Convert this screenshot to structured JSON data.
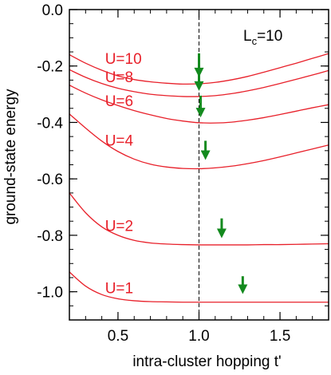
{
  "chart_data": {
    "type": "line",
    "title": "",
    "xlabel": "intra-cluster hopping  t'",
    "ylabel": "ground-state energy",
    "annotation": {
      "main": "L",
      "sub": "c",
      "rest": "=10"
    },
    "xlim": [
      0.2,
      1.8
    ],
    "ylim": [
      -1.1,
      0.0
    ],
    "xticks": [
      0.5,
      1.0,
      1.5
    ],
    "xtick_labels": [
      "0.5",
      "1.0",
      "1.5"
    ],
    "yticks": [
      0.0,
      -0.2,
      -0.4,
      -0.6,
      -0.8,
      -1.0
    ],
    "ytick_labels": [
      "0.0",
      "-0.2",
      "-0.4",
      "-0.6",
      "-0.8",
      "-1.0"
    ],
    "x_minor_step": 0.1,
    "y_minor_step": 0.05,
    "reference_line_x": 1.0,
    "colors": {
      "curve": "#e8202a",
      "arrow": "#138a1e",
      "axis": "#000000"
    },
    "series": [
      {
        "name": "U=10",
        "x": [
          0.2,
          0.3,
          0.4,
          0.5,
          0.6,
          0.7,
          0.8,
          0.9,
          1.0,
          1.1,
          1.2,
          1.3,
          1.4,
          1.5,
          1.6,
          1.7,
          1.8
        ],
        "y": [
          -0.16,
          -0.19,
          -0.215,
          -0.235,
          -0.248,
          -0.256,
          -0.261,
          -0.264,
          -0.263,
          -0.258,
          -0.249,
          -0.237,
          -0.222,
          -0.206,
          -0.19,
          -0.173,
          -0.156
        ]
      },
      {
        "name": "U=8",
        "x": [
          0.2,
          0.3,
          0.4,
          0.5,
          0.6,
          0.7,
          0.8,
          0.9,
          1.0,
          1.1,
          1.2,
          1.3,
          1.4,
          1.5,
          1.6,
          1.7,
          1.8
        ],
        "y": [
          -0.213,
          -0.24,
          -0.262,
          -0.279,
          -0.291,
          -0.3,
          -0.305,
          -0.308,
          -0.308,
          -0.305,
          -0.298,
          -0.288,
          -0.276,
          -0.262,
          -0.247,
          -0.232,
          -0.216
        ]
      },
      {
        "name": "U=6",
        "x": [
          0.2,
          0.3,
          0.4,
          0.5,
          0.6,
          0.7,
          0.8,
          0.9,
          1.0,
          1.1,
          1.2,
          1.3,
          1.4,
          1.5,
          1.6,
          1.7,
          1.8
        ],
        "y": [
          -0.268,
          -0.296,
          -0.32,
          -0.34,
          -0.358,
          -0.373,
          -0.386,
          -0.395,
          -0.401,
          -0.402,
          -0.399,
          -0.392,
          -0.383,
          -0.372,
          -0.36,
          -0.348,
          -0.337
        ]
      },
      {
        "name": "U=4",
        "x": [
          0.2,
          0.3,
          0.4,
          0.5,
          0.6,
          0.7,
          0.8,
          0.9,
          1.0,
          1.1,
          1.2,
          1.3,
          1.4,
          1.5,
          1.6,
          1.7,
          1.8
        ],
        "y": [
          -0.37,
          -0.42,
          -0.466,
          -0.503,
          -0.53,
          -0.548,
          -0.558,
          -0.563,
          -0.564,
          -0.561,
          -0.555,
          -0.546,
          -0.535,
          -0.522,
          -0.508,
          -0.494,
          -0.48
        ]
      },
      {
        "name": "U=2",
        "x": [
          0.2,
          0.3,
          0.4,
          0.5,
          0.6,
          0.7,
          0.8,
          0.9,
          1.0,
          1.1,
          1.2,
          1.3,
          1.4,
          1.5,
          1.6,
          1.7,
          1.8
        ],
        "y": [
          -0.65,
          -0.72,
          -0.77,
          -0.8,
          -0.818,
          -0.827,
          -0.831,
          -0.833,
          -0.834,
          -0.834,
          -0.834,
          -0.834,
          -0.833,
          -0.833,
          -0.832,
          -0.831,
          -0.83
        ]
      },
      {
        "name": "U=1",
        "x": [
          0.2,
          0.3,
          0.4,
          0.5,
          0.6,
          0.7,
          0.8,
          0.9,
          1.0,
          1.1,
          1.2,
          1.3,
          1.4,
          1.5,
          1.6,
          1.7,
          1.8
        ],
        "y": [
          -0.93,
          -0.98,
          -1.01,
          -1.025,
          -1.032,
          -1.035,
          -1.036,
          -1.037,
          -1.037,
          -1.037,
          -1.037,
          -1.037,
          -1.037,
          -1.037,
          -1.037,
          -1.037,
          -1.037
        ]
      }
    ],
    "labels": [
      {
        "text": "U=10",
        "x": 0.42,
        "y": -0.192
      },
      {
        "text": "U=8",
        "x": 0.42,
        "y": -0.258
      },
      {
        "text": "U=6",
        "x": 0.42,
        "y": -0.342
      },
      {
        "text": "U=4",
        "x": 0.42,
        "y": -0.482
      },
      {
        "text": "U=2",
        "x": 0.42,
        "y": -0.785
      },
      {
        "text": "U=1",
        "x": 0.42,
        "y": -1.005
      }
    ],
    "arrows": [
      {
        "x": 1.0,
        "y_start": -0.155,
        "y_end": -0.24
      },
      {
        "x": 1.0,
        "y_start": -0.22,
        "y_end": -0.288
      },
      {
        "x": 1.01,
        "y_start": -0.305,
        "y_end": -0.382
      },
      {
        "x": 1.04,
        "y_start": -0.465,
        "y_end": -0.533
      },
      {
        "x": 1.14,
        "y_start": -0.74,
        "y_end": -0.81
      },
      {
        "x": 1.27,
        "y_start": -0.945,
        "y_end": -1.008
      }
    ]
  }
}
